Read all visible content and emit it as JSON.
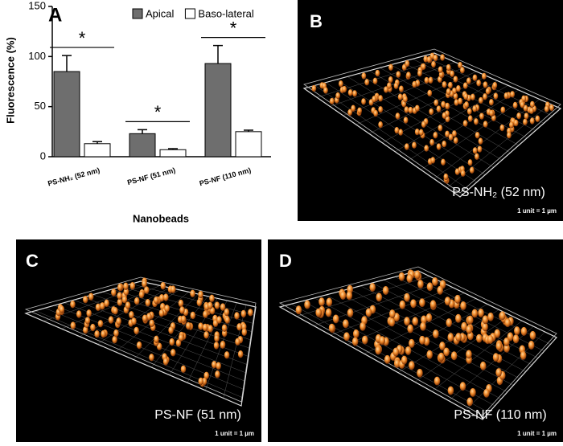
{
  "chart_data": {
    "type": "bar",
    "panel_label": "A",
    "y_label": "Fluorescence (%)",
    "x_label": "Nanobeads",
    "categories": [
      "PS-NH₂ (52 nm)",
      "PS-NF (51 nm)",
      "PS-NF (110 nm)"
    ],
    "series": [
      {
        "name": "Apical",
        "color": "#6e6e6e",
        "values": [
          85,
          23,
          93
        ],
        "errors": [
          16,
          4,
          18
        ]
      },
      {
        "name": "Baso-lateral",
        "color": "#ffffff",
        "values": [
          13,
          7,
          25
        ],
        "errors": [
          2,
          1,
          1.5
        ]
      }
    ],
    "annotations": [
      "*",
      "*",
      "*"
    ],
    "ylim": [
      0,
      150
    ],
    "yticks": [
      0,
      50,
      100,
      150
    ]
  },
  "images": [
    {
      "label": "B",
      "caption": "PS-NH₂ (52 nm)",
      "scale": "1 unit = 1 µm"
    },
    {
      "label": "C",
      "caption": "PS-NF (51 nm)",
      "scale": "1 unit = 1 µm"
    },
    {
      "label": "D",
      "caption": "PS-NF (110 nm)",
      "scale": "1 unit = 1 µm"
    }
  ]
}
